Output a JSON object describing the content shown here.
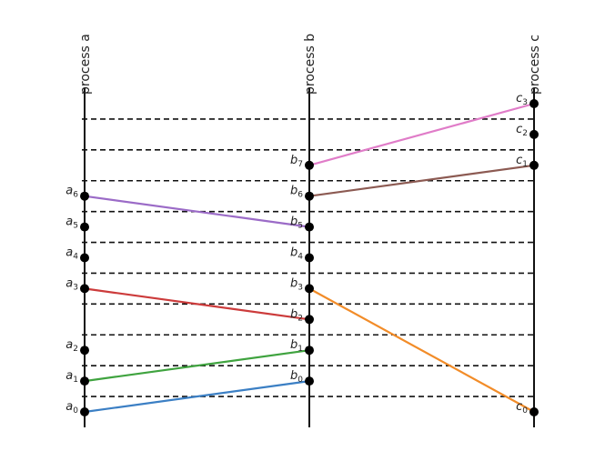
{
  "diagram": {
    "processes": [
      {
        "id": "a",
        "label": "process a"
      },
      {
        "id": "b",
        "label": "process b"
      },
      {
        "id": "c",
        "label": "process c"
      }
    ],
    "events": {
      "a": [
        {
          "name": "a",
          "sub": "0",
          "t": 0
        },
        {
          "name": "a",
          "sub": "1",
          "t": 1
        },
        {
          "name": "a",
          "sub": "2",
          "t": 2
        },
        {
          "name": "a",
          "sub": "3",
          "t": 4
        },
        {
          "name": "a",
          "sub": "4",
          "t": 5
        },
        {
          "name": "a",
          "sub": "5",
          "t": 6
        },
        {
          "name": "a",
          "sub": "6",
          "t": 7
        }
      ],
      "b": [
        {
          "name": "b",
          "sub": "0",
          "t": 1
        },
        {
          "name": "b",
          "sub": "1",
          "t": 2
        },
        {
          "name": "b",
          "sub": "2",
          "t": 3
        },
        {
          "name": "b",
          "sub": "3",
          "t": 4
        },
        {
          "name": "b",
          "sub": "4",
          "t": 5
        },
        {
          "name": "b",
          "sub": "5",
          "t": 6
        },
        {
          "name": "b",
          "sub": "6",
          "t": 7
        },
        {
          "name": "b",
          "sub": "7",
          "t": 8
        }
      ],
      "c": [
        {
          "name": "c",
          "sub": "0",
          "t": 0
        },
        {
          "name": "c",
          "sub": "1",
          "t": 8
        },
        {
          "name": "c",
          "sub": "2",
          "t": 9
        },
        {
          "name": "c",
          "sub": "3",
          "t": 10
        }
      ]
    },
    "messages": [
      {
        "from": "a0",
        "to": "b0",
        "color": "#3b7fc4"
      },
      {
        "from": "a1",
        "to": "b1",
        "color": "#3fa33f"
      },
      {
        "from": "a3",
        "to": "b2",
        "color": "#cc3b3b"
      },
      {
        "from": "b3",
        "to": "c0",
        "color": "#f28c28"
      },
      {
        "from": "a6",
        "to": "b5",
        "color": "#9b6bc7"
      },
      {
        "from": "b6",
        "to": "c1",
        "color": "#8c5a52"
      },
      {
        "from": "b7",
        "to": "c3",
        "color": "#e07cc8"
      }
    ],
    "cut_levels": [
      0.5,
      1.5,
      2.5,
      3.5,
      4.5,
      5.5,
      6.5,
      7.5,
      8.5,
      9.5
    ]
  }
}
